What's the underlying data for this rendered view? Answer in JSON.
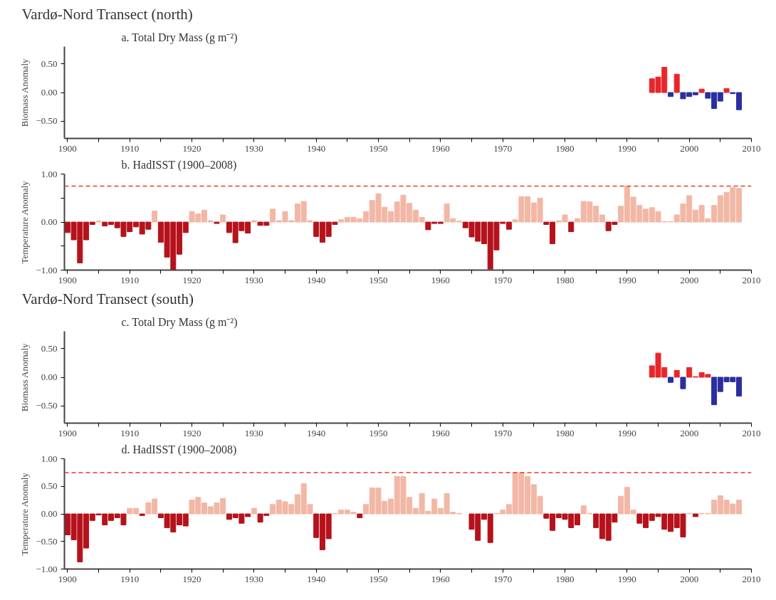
{
  "chart_data": [
    {
      "type": "bar",
      "title": "Vardø-Nord Transect (north)",
      "subtitle": "a. Total Dry Mass (g m⁻²)",
      "ylabel": "Biomass Anomaly",
      "x": [
        1994,
        1995,
        1996,
        1997,
        1998,
        1999,
        2000,
        2001,
        2002,
        2003,
        2004,
        2005,
        2006,
        2007,
        2008
      ],
      "values": [
        0.24,
        0.27,
        0.44,
        -0.07,
        0.32,
        -0.11,
        -0.07,
        -0.04,
        0.06,
        -0.1,
        -0.28,
        -0.15,
        0.07,
        -0.02,
        -0.3
      ],
      "colors": [
        "#e8262a",
        "#e8262a",
        "#e8262a",
        "#2b2f9e",
        "#e8262a",
        "#2b2f9e",
        "#2b2f9e",
        "#2b2f9e",
        "#e8262a",
        "#2b2f9e",
        "#2b2f9e",
        "#2b2f9e",
        "#e8262a",
        "#2b2f9e",
        "#2b2f9e"
      ],
      "xlim": [
        1899.5,
        2010
      ],
      "ylim": [
        -0.8,
        0.8
      ],
      "xticks": [
        1900,
        {
          "value": 1905,
          "label": null
        },
        1910,
        {
          "value": 1915,
          "label": null
        },
        1920,
        {
          "value": 1925,
          "label": null
        },
        1930,
        {
          "value": 1935,
          "label": null
        },
        1940,
        {
          "value": 1945,
          "label": null
        },
        1950,
        {
          "value": 1955,
          "label": null
        },
        1960,
        {
          "value": 1965,
          "label": null
        },
        1970,
        {
          "value": 1975,
          "label": null
        },
        1980,
        {
          "value": 1985,
          "label": null
        },
        1990,
        {
          "value": 1995,
          "label": null
        },
        2000,
        {
          "value": 2005,
          "label": null
        },
        2010
      ],
      "yticks": [
        {
          "value": -0.5,
          "label": "−0.50"
        },
        {
          "value": 0,
          "label": "0.00"
        },
        {
          "value": 0.5,
          "label": "0.50"
        }
      ],
      "grid": false
    },
    {
      "type": "bar",
      "title": "b. HadISST (1900–2008)",
      "ylabel": "Temperature Anomaly",
      "x": [
        1900,
        1901,
        1902,
        1903,
        1904,
        1905,
        1906,
        1907,
        1908,
        1909,
        1910,
        1911,
        1912,
        1913,
        1914,
        1915,
        1916,
        1917,
        1918,
        1919,
        1920,
        1921,
        1922,
        1923,
        1924,
        1925,
        1926,
        1927,
        1928,
        1929,
        1930,
        1931,
        1932,
        1933,
        1934,
        1935,
        1936,
        1937,
        1938,
        1939,
        1940,
        1941,
        1942,
        1943,
        1944,
        1945,
        1946,
        1947,
        1948,
        1949,
        1950,
        1951,
        1952,
        1953,
        1954,
        1955,
        1956,
        1957,
        1958,
        1959,
        1960,
        1961,
        1962,
        1963,
        1964,
        1965,
        1966,
        1967,
        1968,
        1969,
        1970,
        1971,
        1972,
        1973,
        1974,
        1975,
        1976,
        1977,
        1978,
        1979,
        1980,
        1981,
        1982,
        1983,
        1984,
        1985,
        1986,
        1987,
        1988,
        1989,
        1990,
        1991,
        1992,
        1993,
        1994,
        1995,
        1996,
        1997,
        1998,
        1999,
        2000,
        2001,
        2002,
        2003,
        2004,
        2005,
        2006,
        2007,
        2008
      ],
      "values": [
        -0.22,
        -0.37,
        -0.85,
        -0.37,
        -0.05,
        0.02,
        -0.08,
        -0.05,
        -0.12,
        -0.3,
        -0.2,
        -0.1,
        -0.25,
        -0.15,
        0.23,
        -0.42,
        -0.73,
        -1.0,
        -0.67,
        -0.22,
        0.22,
        0.17,
        0.25,
        0.03,
        -0.03,
        0.15,
        -0.22,
        -0.43,
        -0.18,
        -0.23,
        0.03,
        -0.07,
        -0.07,
        0.27,
        0.03,
        0.22,
        0.03,
        0.38,
        0.43,
        0.03,
        -0.3,
        -0.42,
        -0.3,
        -0.05,
        0.05,
        0.1,
        0.1,
        0.07,
        0.22,
        0.45,
        0.59,
        0.31,
        0.22,
        0.42,
        0.56,
        0.39,
        0.25,
        0.1,
        -0.16,
        -0.03,
        -0.03,
        0.38,
        0.07,
        0.02,
        -0.12,
        -0.31,
        -0.4,
        -0.45,
        -0.98,
        -0.58,
        -0.03,
        -0.15,
        0.05,
        0.53,
        0.53,
        0.4,
        0.5,
        -0.05,
        -0.45,
        0.03,
        0.15,
        -0.2,
        0.07,
        0.43,
        0.42,
        0.33,
        0.15,
        -0.18,
        -0.05,
        0.33,
        0.75,
        0.52,
        0.35,
        0.27,
        0.3,
        0.22,
        0.01,
        0.01,
        0.15,
        0.38,
        0.55,
        0.25,
        0.35,
        0.07,
        0.35,
        0.55,
        0.62,
        0.72,
        0.7
      ],
      "colors": [
        "#b5121b",
        "#b5121b",
        "#b5121b",
        "#b5121b",
        "#b5121b",
        "#f2b7a5",
        "#b5121b",
        "#b5121b",
        "#b5121b",
        "#b5121b",
        "#b5121b",
        "#b5121b",
        "#b5121b",
        "#b5121b",
        "#f2b7a5",
        "#b5121b",
        "#b5121b",
        "#b5121b",
        "#b5121b",
        "#b5121b",
        "#f2b7a5",
        "#f2b7a5",
        "#f2b7a5",
        "#f2b7a5",
        "#b5121b",
        "#f2b7a5",
        "#b5121b",
        "#b5121b",
        "#b5121b",
        "#b5121b",
        "#f2b7a5",
        "#b5121b",
        "#b5121b",
        "#f2b7a5",
        "#f2b7a5",
        "#f2b7a5",
        "#f2b7a5",
        "#f2b7a5",
        "#f2b7a5",
        "#f2b7a5",
        "#b5121b",
        "#b5121b",
        "#b5121b",
        "#b5121b",
        "#f2b7a5",
        "#f2b7a5",
        "#f2b7a5",
        "#f2b7a5",
        "#f2b7a5",
        "#f2b7a5",
        "#f2b7a5",
        "#f2b7a5",
        "#f2b7a5",
        "#f2b7a5",
        "#f2b7a5",
        "#f2b7a5",
        "#f2b7a5",
        "#f2b7a5",
        "#b5121b",
        "#b5121b",
        "#b5121b",
        "#f2b7a5",
        "#f2b7a5",
        "#f2b7a5",
        "#b5121b",
        "#b5121b",
        "#b5121b",
        "#b5121b",
        "#b5121b",
        "#b5121b",
        "#b5121b",
        "#b5121b",
        "#f2b7a5",
        "#f2b7a5",
        "#f2b7a5",
        "#f2b7a5",
        "#f2b7a5",
        "#b5121b",
        "#b5121b",
        "#f2b7a5",
        "#f2b7a5",
        "#b5121b",
        "#f2b7a5",
        "#f2b7a5",
        "#f2b7a5",
        "#f2b7a5",
        "#f2b7a5",
        "#b5121b",
        "#b5121b",
        "#f2b7a5",
        "#f2b7a5",
        "#f2b7a5",
        "#f2b7a5",
        "#f2b7a5",
        "#f2b7a5",
        "#f2b7a5",
        "#f2b7a5",
        "#f2b7a5",
        "#f2b7a5",
        "#f2b7a5",
        "#f2b7a5",
        "#f2b7a5",
        "#f2b7a5",
        "#f2b7a5",
        "#f2b7a5",
        "#f2b7a5",
        "#f2b7a5",
        "#f2b7a5",
        "#f2b7a5"
      ],
      "xlim": [
        1899.5,
        2010
      ],
      "ylim": [
        -1.0,
        1.0
      ],
      "xticks": [
        1900,
        {
          "value": 1905,
          "label": null
        },
        1910,
        {
          "value": 1915,
          "label": null
        },
        1920,
        {
          "value": 1925,
          "label": null
        },
        1930,
        {
          "value": 1935,
          "label": null
        },
        1940,
        {
          "value": 1945,
          "label": null
        },
        1950,
        {
          "value": 1955,
          "label": null
        },
        1960,
        {
          "value": 1965,
          "label": null
        },
        1970,
        {
          "value": 1975,
          "label": null
        },
        1980,
        {
          "value": 1985,
          "label": null
        },
        1990,
        {
          "value": 1995,
          "label": null
        },
        2000,
        {
          "value": 2005,
          "label": null
        },
        2010
      ],
      "yticks": [
        {
          "value": -1,
          "label": "−1.00"
        },
        {
          "value": -0.5,
          "label": null
        },
        {
          "value": 0,
          "label": "0.00"
        },
        {
          "value": 0.5,
          "label": null
        },
        {
          "value": 1,
          "label": "1.00"
        }
      ],
      "ref_lines": [
        {
          "axis": "y",
          "value": 0.75,
          "color": "#e8392c",
          "line_style": "dashed"
        }
      ],
      "grid": false
    },
    {
      "type": "bar",
      "title": "Vardø-Nord Transect (south)",
      "subtitle": "c. Total Dry Mass (g m⁻²)",
      "ylabel": "Biomass Anomaly",
      "x": [
        1994,
        1995,
        1996,
        1997,
        1998,
        1999,
        2000,
        2001,
        2002,
        2003,
        2004,
        2005,
        2006,
        2007,
        2008
      ],
      "values": [
        0.2,
        0.42,
        0.17,
        -0.09,
        0.12,
        -0.2,
        0.17,
        0.01,
        0.08,
        0.05,
        -0.48,
        -0.25,
        -0.08,
        -0.08,
        -0.33
      ],
      "colors": [
        "#e8262a",
        "#e8262a",
        "#e8262a",
        "#2b2f9e",
        "#e8262a",
        "#2b2f9e",
        "#e8262a",
        "#e8262a",
        "#e8262a",
        "#e8262a",
        "#2b2f9e",
        "#2b2f9e",
        "#2b2f9e",
        "#2b2f9e",
        "#2b2f9e"
      ],
      "xlim": [
        1899.5,
        2010
      ],
      "ylim": [
        -0.8,
        0.8
      ],
      "xticks": [
        1900,
        {
          "value": 1905,
          "label": null
        },
        1910,
        {
          "value": 1915,
          "label": null
        },
        1920,
        {
          "value": 1925,
          "label": null
        },
        1930,
        {
          "value": 1935,
          "label": null
        },
        1940,
        {
          "value": 1945,
          "label": null
        },
        1950,
        {
          "value": 1955,
          "label": null
        },
        1960,
        {
          "value": 1965,
          "label": null
        },
        1970,
        {
          "value": 1975,
          "label": null
        },
        1980,
        {
          "value": 1985,
          "label": null
        },
        1990,
        {
          "value": 1995,
          "label": null
        },
        2000,
        {
          "value": 2005,
          "label": null
        },
        2010
      ],
      "yticks": [
        {
          "value": -0.5,
          "label": "−0.50"
        },
        {
          "value": 0,
          "label": "0.00"
        },
        {
          "value": 0.5,
          "label": "0.50"
        }
      ],
      "grid": false
    },
    {
      "type": "bar",
      "title": "d. HadISST (1900–2008)",
      "ylabel": "Temperature Anomaly",
      "x": [
        1900,
        1901,
        1902,
        1903,
        1904,
        1905,
        1906,
        1907,
        1908,
        1909,
        1910,
        1911,
        1912,
        1913,
        1914,
        1915,
        1916,
        1917,
        1918,
        1919,
        1920,
        1921,
        1922,
        1923,
        1924,
        1925,
        1926,
        1927,
        1928,
        1929,
        1930,
        1931,
        1932,
        1933,
        1934,
        1935,
        1936,
        1937,
        1938,
        1939,
        1940,
        1941,
        1942,
        1943,
        1944,
        1945,
        1946,
        1947,
        1948,
        1949,
        1950,
        1951,
        1952,
        1953,
        1954,
        1955,
        1956,
        1957,
        1958,
        1959,
        1960,
        1961,
        1962,
        1963,
        1964,
        1965,
        1966,
        1967,
        1968,
        1969,
        1970,
        1971,
        1972,
        1973,
        1974,
        1975,
        1976,
        1977,
        1978,
        1979,
        1980,
        1981,
        1982,
        1983,
        1984,
        1985,
        1986,
        1987,
        1988,
        1989,
        1990,
        1991,
        1992,
        1993,
        1994,
        1995,
        1996,
        1997,
        1998,
        1999,
        2000,
        2001,
        2002,
        2003,
        2004,
        2005,
        2006,
        2007,
        2008
      ],
      "values": [
        -0.38,
        -0.47,
        -0.87,
        -0.62,
        -0.12,
        -0.02,
        -0.2,
        -0.12,
        -0.07,
        -0.2,
        0.1,
        0.1,
        -0.03,
        0.2,
        0.27,
        -0.07,
        -0.25,
        -0.33,
        -0.2,
        -0.22,
        0.25,
        0.3,
        0.2,
        0.13,
        0.2,
        0.28,
        -0.1,
        -0.07,
        -0.17,
        -0.05,
        0.1,
        -0.15,
        -0.03,
        0.17,
        0.25,
        0.22,
        0.17,
        0.35,
        0.55,
        0.17,
        -0.43,
        -0.65,
        -0.45,
        0.01,
        0.07,
        0.07,
        0.03,
        -0.07,
        0.17,
        0.47,
        0.47,
        0.23,
        0.27,
        0.68,
        0.68,
        0.3,
        0.1,
        0.37,
        0.05,
        0.27,
        0.1,
        0.37,
        0.03,
        0.01,
        null,
        -0.28,
        -0.48,
        -0.1,
        -0.52,
        0.01,
        0.07,
        0.17,
        0.75,
        0.75,
        0.68,
        0.53,
        0.32,
        -0.08,
        -0.3,
        -0.07,
        -0.1,
        -0.25,
        -0.2,
        0.15,
        0.01,
        -0.25,
        -0.45,
        -0.48,
        -0.15,
        0.32,
        0.48,
        0.07,
        -0.17,
        -0.25,
        -0.12,
        -0.05,
        -0.28,
        -0.32,
        -0.25,
        -0.42,
        0.01,
        -0.05,
        0.01,
        0.01,
        0.25,
        0.33,
        0.25,
        0.18,
        0.25
      ],
      "colors": [
        "#b5121b",
        "#b5121b",
        "#b5121b",
        "#b5121b",
        "#b5121b",
        "#b5121b",
        "#b5121b",
        "#b5121b",
        "#b5121b",
        "#b5121b",
        "#f2b7a5",
        "#f2b7a5",
        "#b5121b",
        "#f2b7a5",
        "#f2b7a5",
        "#b5121b",
        "#b5121b",
        "#b5121b",
        "#b5121b",
        "#b5121b",
        "#f2b7a5",
        "#f2b7a5",
        "#f2b7a5",
        "#f2b7a5",
        "#f2b7a5",
        "#f2b7a5",
        "#b5121b",
        "#b5121b",
        "#b5121b",
        "#b5121b",
        "#f2b7a5",
        "#b5121b",
        "#b5121b",
        "#f2b7a5",
        "#f2b7a5",
        "#f2b7a5",
        "#f2b7a5",
        "#f2b7a5",
        "#f2b7a5",
        "#f2b7a5",
        "#b5121b",
        "#b5121b",
        "#b5121b",
        "#f2b7a5",
        "#f2b7a5",
        "#f2b7a5",
        "#f2b7a5",
        "#b5121b",
        "#f2b7a5",
        "#f2b7a5",
        "#f2b7a5",
        "#f2b7a5",
        "#f2b7a5",
        "#f2b7a5",
        "#f2b7a5",
        "#f2b7a5",
        "#f2b7a5",
        "#f2b7a5",
        "#f2b7a5",
        "#f2b7a5",
        "#f2b7a5",
        "#f2b7a5",
        "#f2b7a5",
        "#f2b7a5",
        null,
        "#b5121b",
        "#b5121b",
        "#b5121b",
        "#b5121b",
        "#f2b7a5",
        "#f2b7a5",
        "#f2b7a5",
        "#f2b7a5",
        "#f2b7a5",
        "#f2b7a5",
        "#f2b7a5",
        "#f2b7a5",
        "#b5121b",
        "#b5121b",
        "#b5121b",
        "#b5121b",
        "#b5121b",
        "#b5121b",
        "#f2b7a5",
        "#f2b7a5",
        "#b5121b",
        "#b5121b",
        "#b5121b",
        "#b5121b",
        "#f2b7a5",
        "#f2b7a5",
        "#f2b7a5",
        "#b5121b",
        "#b5121b",
        "#b5121b",
        "#b5121b",
        "#b5121b",
        "#b5121b",
        "#b5121b",
        "#b5121b",
        "#f2b7a5",
        "#b5121b",
        "#f2b7a5",
        "#f2b7a5",
        "#f2b7a5",
        "#f2b7a5",
        "#f2b7a5",
        "#f2b7a5",
        "#f2b7a5"
      ],
      "xlim": [
        1899.5,
        2010
      ],
      "ylim": [
        -1.0,
        1.0
      ],
      "xticks": [
        1900,
        {
          "value": 1905,
          "label": null
        },
        1910,
        {
          "value": 1915,
          "label": null
        },
        1920,
        {
          "value": 1925,
          "label": null
        },
        1930,
        {
          "value": 1935,
          "label": null
        },
        1940,
        {
          "value": 1945,
          "label": null
        },
        1950,
        {
          "value": 1955,
          "label": null
        },
        1960,
        {
          "value": 1965,
          "label": null
        },
        1970,
        {
          "value": 1975,
          "label": null
        },
        1980,
        {
          "value": 1985,
          "label": null
        },
        1990,
        {
          "value": 1995,
          "label": null
        },
        2000,
        {
          "value": 2005,
          "label": null
        },
        2010
      ],
      "yticks": [
        {
          "value": -1,
          "label": "−1.00"
        },
        {
          "value": -0.5,
          "label": "−0.50"
        },
        {
          "value": 0,
          "label": "0.00"
        },
        {
          "value": 0.5,
          "label": "0.50"
        },
        {
          "value": 1,
          "label": "1.00"
        }
      ],
      "ref_lines": [
        {
          "axis": "y",
          "value": 0.75,
          "color": "#e8392c",
          "line_style": "dashed"
        }
      ],
      "grid": false
    }
  ]
}
